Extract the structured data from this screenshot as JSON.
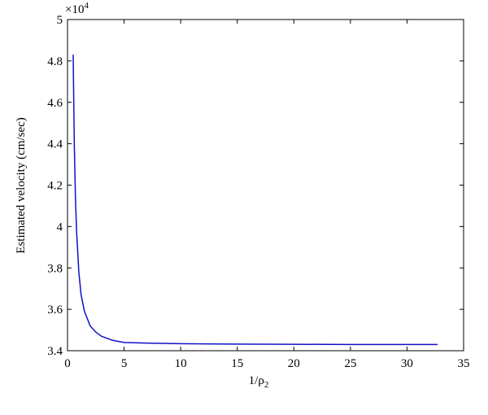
{
  "chart_data": {
    "type": "line",
    "ylabel": "Estimated velocity (cm/sec)",
    "xlabel": {
      "text": "1/ρ",
      "subscript": "2"
    },
    "y_multiplier": {
      "base": "×10",
      "exponent": "4"
    },
    "xlim": [
      0,
      35
    ],
    "xticks": [
      0,
      5,
      10,
      15,
      20,
      25,
      30,
      35
    ],
    "ylim": [
      3.4,
      5
    ],
    "yticks": [
      3.4,
      3.6,
      3.8,
      4,
      4.2,
      4.4,
      4.6,
      4.8,
      5
    ],
    "x": [
      0.5,
      0.6,
      0.7,
      0.8,
      1,
      1.2,
      1.5,
      2,
      2.5,
      3,
      4,
      5,
      7,
      10,
      15,
      20,
      25,
      30,
      32.7
    ],
    "series": [
      {
        "color": "#1010c8",
        "values": [
          4.83,
          4.4,
          4.14,
          3.98,
          3.78,
          3.67,
          3.59,
          3.52,
          3.49,
          3.47,
          3.45,
          3.44,
          3.437,
          3.434,
          3.432,
          3.431,
          3.43,
          3.43,
          3.43
        ]
      }
    ]
  }
}
